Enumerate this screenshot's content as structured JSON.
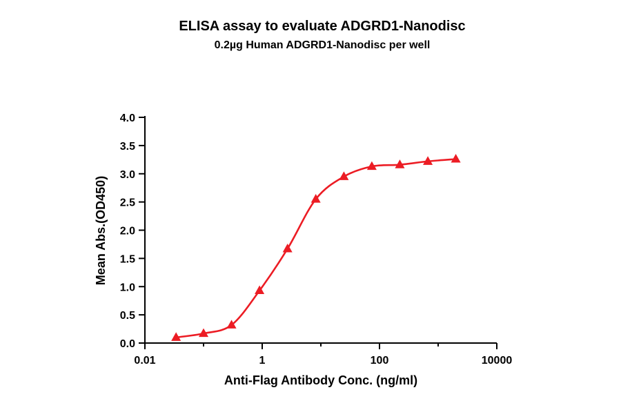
{
  "page": {
    "background": "#ffffff"
  },
  "chart_data": {
    "type": "scatter",
    "title": "ELISA assay to evaluate ADGRD1-Nanodisc",
    "subtitle": "0.2µg Human ADGRD1-Nanodisc per well",
    "xlabel": "Anti-Flag Antibody Conc. (ng/ml)",
    "ylabel": "Mean Abs.(OD450)",
    "x_scale": "log10",
    "xlim": [
      0.01,
      10000
    ],
    "ylim": [
      0,
      4
    ],
    "x_major_ticks": [
      0.01,
      1,
      100,
      10000
    ],
    "x_major_tick_labels": [
      "0.01",
      "1",
      "100",
      "10000"
    ],
    "x_minor_ticks": [
      0.1,
      10,
      1000
    ],
    "y_ticks": [
      0,
      0.5,
      1.0,
      1.5,
      2.0,
      2.5,
      3.0,
      3.5,
      4.0
    ],
    "y_tick_labels": [
      "0.0",
      "0.5",
      "1.0",
      "1.5",
      "2.0",
      "2.5",
      "3.0",
      "3.5",
      "4.0"
    ],
    "grid": false,
    "legend": "none",
    "series": [
      {
        "name": "ADGRD1-Nanodisc",
        "marker": "triangle",
        "color": "#EC1C24",
        "line": "sigmoid-fit",
        "x": [
          0.034,
          0.1,
          0.3,
          0.9,
          2.7,
          8.2,
          24.7,
          74,
          222,
          667,
          2000
        ],
        "y": [
          0.1,
          0.17,
          0.32,
          0.93,
          1.67,
          2.55,
          2.95,
          3.13,
          3.16,
          3.22,
          3.26
        ]
      }
    ]
  }
}
